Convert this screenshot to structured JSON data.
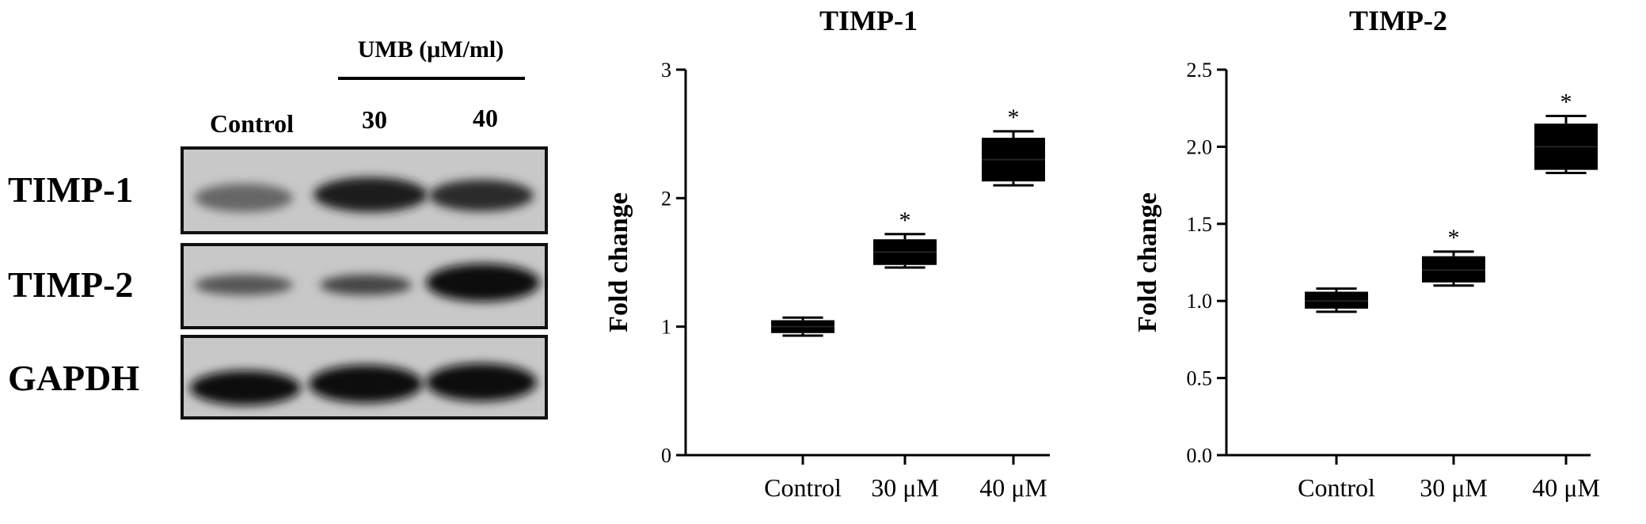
{
  "blot": {
    "treatment_label": "UMB (μM/ml)",
    "lanes": [
      "Control",
      "30",
      "40"
    ],
    "rows": [
      "TIMP-1",
      "TIMP-2",
      "GAPDH"
    ]
  },
  "chart_data": [
    {
      "type": "box",
      "title": "TIMP-1",
      "y_label": "Fold change",
      "categories": [
        "Control",
        "30 μM",
        "40 μM"
      ],
      "min": [
        0.93,
        1.46,
        2.1
      ],
      "q1": [
        0.95,
        1.48,
        2.13
      ],
      "median": [
        1.0,
        1.58,
        2.3
      ],
      "q3": [
        1.05,
        1.68,
        2.47
      ],
      "max": [
        1.07,
        1.72,
        2.52
      ],
      "significance": [
        null,
        "*",
        "*"
      ],
      "color": "#000000",
      "ylim": [
        0,
        3
      ],
      "yticks": [
        0,
        1,
        2,
        3
      ]
    },
    {
      "type": "box",
      "title": "TIMP-2",
      "y_label": "Fold change",
      "categories": [
        "Control",
        "30 μM",
        "40 μM"
      ],
      "min": [
        0.93,
        1.1,
        1.83
      ],
      "q1": [
        0.95,
        1.12,
        1.85
      ],
      "median": [
        1.0,
        1.2,
        2.0
      ],
      "q3": [
        1.06,
        1.29,
        2.15
      ],
      "max": [
        1.08,
        1.32,
        2.2
      ],
      "significance": [
        null,
        "*",
        "*"
      ],
      "color": "#000000",
      "ylim": [
        0,
        2.5
      ],
      "yticks": [
        {
          "value": 0,
          "label": "0.0"
        },
        0.5,
        {
          "value": 1,
          "label": "1.0"
        },
        1.5,
        {
          "value": 2,
          "label": "2.0"
        },
        2.5
      ]
    }
  ]
}
